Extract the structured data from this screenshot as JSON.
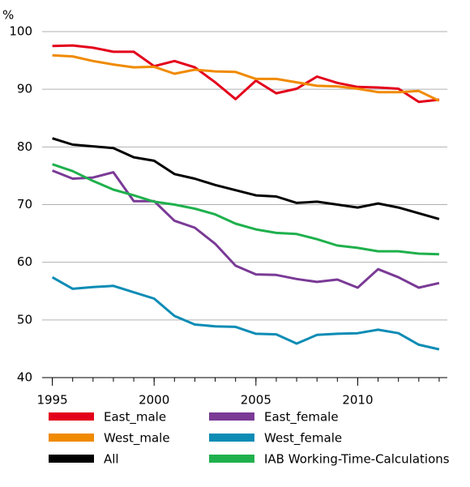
{
  "chart_data": {
    "type": "line",
    "y_axis_label": "%",
    "x": [
      1995,
      1996,
      1997,
      1998,
      1999,
      2000,
      2001,
      2002,
      2003,
      2004,
      2005,
      2006,
      2007,
      2008,
      2009,
      2010,
      2011,
      2012,
      2013,
      2014
    ],
    "series": [
      {
        "name": "East_male",
        "color": "#e3001b",
        "values": [
          97.5,
          97.6,
          97.2,
          96.5,
          96.5,
          94.0,
          94.9,
          93.8,
          91.2,
          88.3,
          91.5,
          89.3,
          90.1,
          92.2,
          91.1,
          90.4,
          90.3,
          90.1,
          87.8,
          88.2
        ]
      },
      {
        "name": "West_male",
        "color": "#f08a00",
        "values": [
          95.9,
          95.7,
          94.9,
          94.3,
          93.8,
          93.9,
          92.7,
          93.4,
          93.1,
          93.0,
          91.8,
          91.8,
          91.2,
          90.6,
          90.5,
          90.1,
          89.5,
          89.5,
          89.7,
          88.0
        ]
      },
      {
        "name": "All",
        "color": "#000000",
        "values": [
          81.5,
          80.4,
          80.1,
          79.8,
          78.2,
          77.6,
          75.3,
          74.5,
          73.4,
          72.5,
          71.6,
          71.4,
          70.3,
          70.5,
          70.0,
          69.5,
          70.2,
          69.5,
          68.5,
          67.5
        ]
      },
      {
        "name": "East_female",
        "color": "#7a3a96",
        "values": [
          75.9,
          74.5,
          74.7,
          75.6,
          70.6,
          70.6,
          67.2,
          66.0,
          63.2,
          59.4,
          57.9,
          57.8,
          57.1,
          56.6,
          57.0,
          55.6,
          58.8,
          57.4,
          55.6,
          56.4
        ]
      },
      {
        "name": "West_female",
        "color": "#0c8cb5",
        "values": [
          57.4,
          55.4,
          55.7,
          55.9,
          54.8,
          53.7,
          50.7,
          49.2,
          48.9,
          48.8,
          47.6,
          47.5,
          45.9,
          47.4,
          47.6,
          47.7,
          48.3,
          47.7,
          45.7,
          44.9
        ]
      },
      {
        "name": "IAB Working-Time-Calculations",
        "color": "#1fb04d",
        "values": [
          77.0,
          75.8,
          74.1,
          72.6,
          71.6,
          70.5,
          70.0,
          69.3,
          68.3,
          66.7,
          65.7,
          65.1,
          64.9,
          64.0,
          62.9,
          62.5,
          61.9,
          61.9,
          61.5,
          61.4
        ]
      }
    ],
    "xlim": [
      1994.5,
      2014.4
    ],
    "xticks": [
      1995,
      2000,
      2005,
      2010
    ],
    "x_minor_ticks": [
      1995,
      1996,
      1997,
      1998,
      1999,
      2000,
      2001,
      2002,
      2003,
      2004,
      2005,
      2006,
      2007,
      2008,
      2009,
      2010,
      2011,
      2012,
      2013,
      2014
    ],
    "ylim": [
      40,
      100
    ],
    "yticks": [
      40,
      50,
      60,
      70,
      80,
      90,
      100
    ],
    "grid": true
  }
}
